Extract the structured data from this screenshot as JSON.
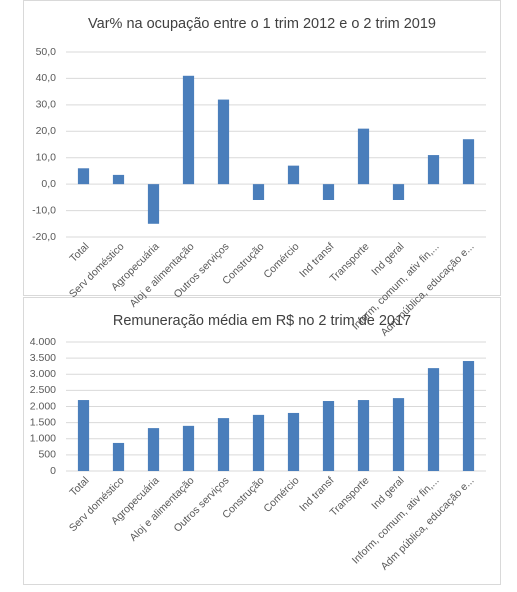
{
  "chart_data": [
    {
      "type": "bar",
      "title": "Var% na ocupação entre o 1 trim 2012 e o 2 trim 2019",
      "categories": [
        "Total",
        "Serv doméstico",
        "Agropecuária",
        "Aloj e alimentação",
        "Outros serviços",
        "Construção",
        "Comércio",
        "Ind transf",
        "Transporte",
        "Ind geral",
        "Inform, comum, ativ fin,...",
        "Adm pública, educação e..."
      ],
      "values": [
        6,
        3.5,
        -15,
        41,
        32,
        -6,
        7,
        -6,
        21,
        -6,
        11,
        17
      ],
      "color": "#4a7ebb",
      "ylim": [
        -20,
        50
      ],
      "yticks": [
        {
          "value": -20,
          "label": "-20,0"
        },
        {
          "value": -10,
          "label": "-10,0"
        },
        {
          "value": 0,
          "label": "0,0"
        },
        {
          "value": 10,
          "label": "10,0"
        },
        {
          "value": 20,
          "label": "20,0"
        },
        {
          "value": 30,
          "label": "30,0"
        },
        {
          "value": 40,
          "label": "40,0"
        },
        {
          "value": 50,
          "label": "50,0"
        }
      ],
      "grid": true
    },
    {
      "type": "bar",
      "title": "Remuneração média em R$ no 2 trim de 2017",
      "categories": [
        "Total",
        "Serv doméstico",
        "Agropecuária",
        "Aloj e alimentação",
        "Outros serviços",
        "Construção",
        "Comércio",
        "Ind transf",
        "Transporte",
        "Ind geral",
        "Inform, comum, ativ fin,...",
        "Adm pública, educação e..."
      ],
      "values": [
        2200,
        870,
        1330,
        1400,
        1640,
        1740,
        1800,
        2170,
        2200,
        2260,
        3190,
        3410
      ],
      "color": "#4a7ebb",
      "ylim": [
        0,
        4000
      ],
      "yticks": [
        0,
        {
          "value": 500,
          "label": "500"
        },
        {
          "value": 1000,
          "label": "1.000"
        },
        {
          "value": 1500,
          "label": "1.500"
        },
        {
          "value": 2000,
          "label": "2.000"
        },
        {
          "value": 2500,
          "label": "2.500"
        },
        {
          "value": 3000,
          "label": "3.000"
        },
        {
          "value": 3500,
          "label": "3.500"
        },
        {
          "value": 4000,
          "label": "4.000"
        }
      ],
      "grid": true
    }
  ]
}
